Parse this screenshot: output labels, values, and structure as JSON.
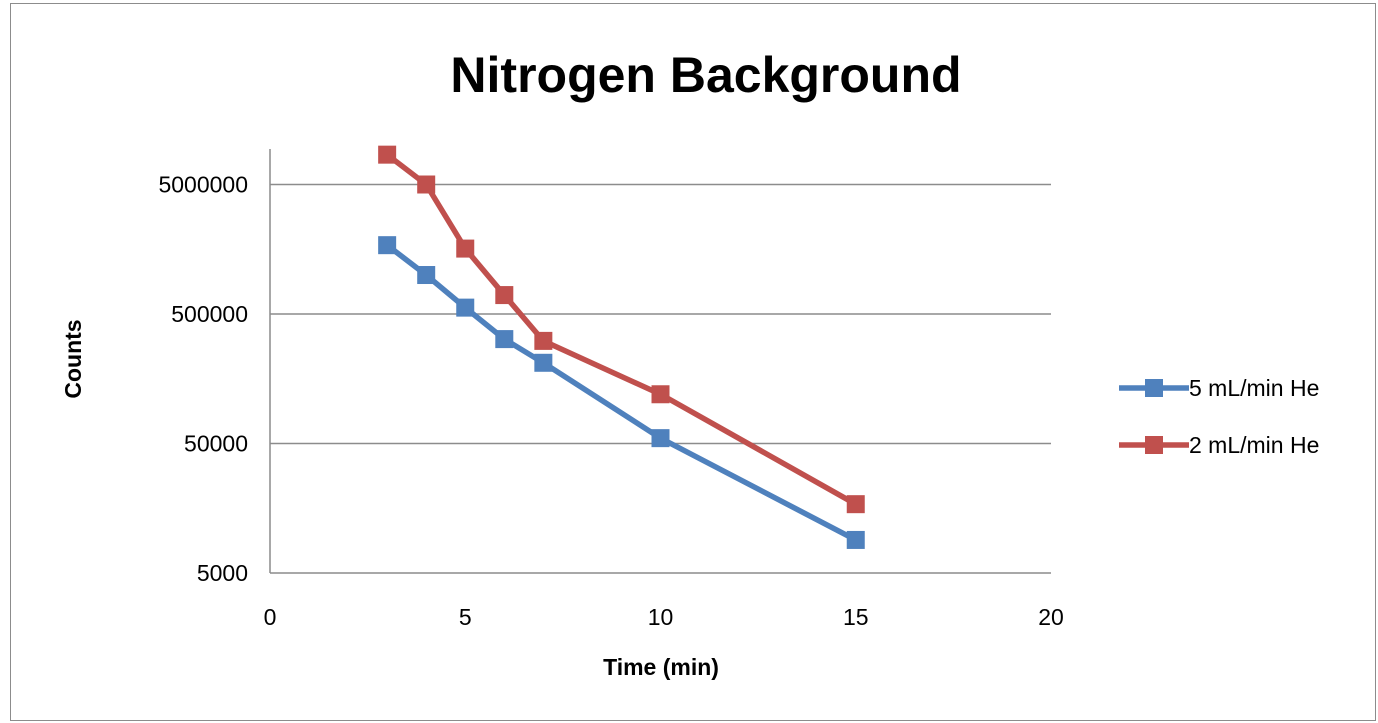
{
  "chart_data": {
    "type": "line",
    "title": "Nitrogen Background",
    "xlabel": "Time (min)",
    "ylabel": "Counts",
    "xlim": [
      0,
      20
    ],
    "x_ticks": [
      "0",
      "5",
      "10",
      "15",
      "20"
    ],
    "y_scale": "log",
    "ylim": [
      5000,
      10000000
    ],
    "y_ticks": [
      "5000",
      "50000",
      "500000",
      "5000000"
    ],
    "grid": "horizontal major gridlines",
    "legend_position": "right",
    "series": [
      {
        "name": "5 mL/min He",
        "color": "#4f81bd",
        "marker": "square",
        "x": [
          3,
          4,
          5,
          6,
          7,
          10,
          15
        ],
        "y": [
          1700000,
          1000000,
          560000,
          320000,
          210000,
          55000,
          9000
        ]
      },
      {
        "name": "2 mL/min He",
        "color": "#c0504d",
        "marker": "square",
        "x": [
          3,
          4,
          5,
          6,
          7,
          10,
          15
        ],
        "y": [
          8500000,
          5000000,
          1600000,
          700000,
          310000,
          120000,
          17000
        ]
      }
    ]
  }
}
